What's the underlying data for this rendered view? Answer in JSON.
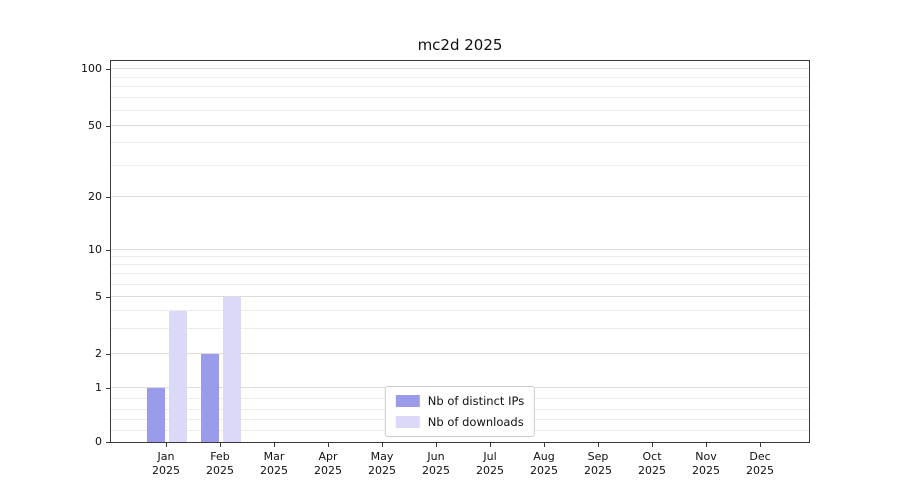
{
  "title": "mc2d 2025",
  "chart_data": {
    "type": "bar",
    "title": "mc2d 2025",
    "categories": [
      {
        "month": "Jan",
        "year": "2025"
      },
      {
        "month": "Feb",
        "year": "2025"
      },
      {
        "month": "Mar",
        "year": "2025"
      },
      {
        "month": "Apr",
        "year": "2025"
      },
      {
        "month": "May",
        "year": "2025"
      },
      {
        "month": "Jun",
        "year": "2025"
      },
      {
        "month": "Jul",
        "year": "2025"
      },
      {
        "month": "Aug",
        "year": "2025"
      },
      {
        "month": "Sep",
        "year": "2025"
      },
      {
        "month": "Oct",
        "year": "2025"
      },
      {
        "month": "Nov",
        "year": "2025"
      },
      {
        "month": "Dec",
        "year": "2025"
      }
    ],
    "series": [
      {
        "name": "Nb of distinct IPs",
        "color": "#9b9bec",
        "values": [
          1,
          2,
          0,
          0,
          0,
          0,
          0,
          0,
          0,
          0,
          0,
          0
        ]
      },
      {
        "name": "Nb of downloads",
        "color": "#dadaf8",
        "values": [
          4,
          5,
          0,
          0,
          0,
          0,
          0,
          0,
          0,
          0,
          0,
          0
        ]
      }
    ],
    "yscale": "symlog",
    "ylim": [
      0,
      100
    ],
    "yticks": [
      0,
      1,
      2,
      5,
      10,
      20,
      50,
      100
    ],
    "yticks_minor": [
      0.2,
      0.4,
      0.6,
      0.8,
      3,
      4,
      6,
      7,
      8,
      9,
      30,
      40,
      60,
      70,
      80,
      90
    ],
    "grid": true,
    "legend_position": "lower center"
  }
}
